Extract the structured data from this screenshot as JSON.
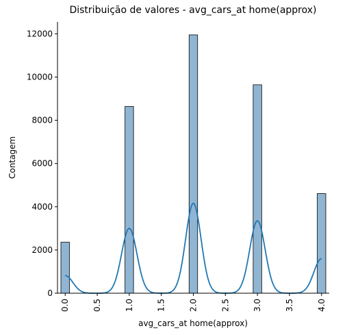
{
  "chart_data": {
    "type": "bar",
    "title": "Distribuição de valores - avg_cars_at home(approx)",
    "xlabel": "avg_cars_at home(approx)",
    "ylabel": "Contagem",
    "xlim": [
      -0.12,
      4.12
    ],
    "ylim": [
      0,
      12550
    ],
    "x_ticks": [
      "0.0",
      "0.5",
      "1.0",
      "1.5",
      "2.0",
      "2.5",
      "3.0",
      "3.5",
      "4.0"
    ],
    "y_ticks": [
      "0",
      "2000",
      "4000",
      "6000",
      "8000",
      "10000",
      "12000"
    ],
    "bars": [
      {
        "x": 0.0,
        "value": 2360
      },
      {
        "x": 1.0,
        "value": 8640
      },
      {
        "x": 2.0,
        "value": 11950
      },
      {
        "x": 3.0,
        "value": 9640
      },
      {
        "x": 4.0,
        "value": 4610
      }
    ],
    "kde_peaks": [
      {
        "x": 0.0,
        "value": 820
      },
      {
        "x": 1.0,
        "value": 3000
      },
      {
        "x": 2.0,
        "value": 4160
      },
      {
        "x": 3.0,
        "value": 3350
      },
      {
        "x": 4.0,
        "value": 1600
      }
    ],
    "bar_color": "#8fb5d3",
    "line_color": "#1f77b4",
    "grid": false
  }
}
